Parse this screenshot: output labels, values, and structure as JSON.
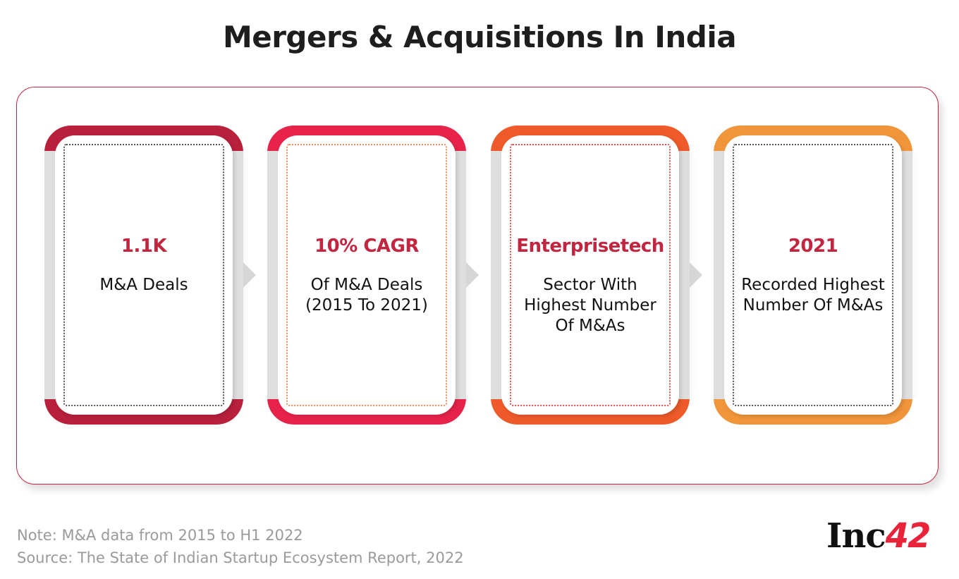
{
  "title": "Mergers & Acquisitions In India",
  "cards": [
    {
      "value": "1.1K",
      "description": "M&A Deals",
      "top_color": "#b8203c",
      "bottom_color": "#b8203c",
      "dot_color": "#555555"
    },
    {
      "value": "10% CAGR",
      "description": "Of M&A Deals (2015 To 2021)",
      "top_color": "#e8234a",
      "bottom_color": "#e8234a",
      "dot_color": "#f08a5a"
    },
    {
      "value": "Enterprisetech",
      "description": "Sector With Highest Number Of M&As",
      "top_color": "#ee5a2a",
      "bottom_color": "#ee5a2a",
      "dot_color": "#e04a4a"
    },
    {
      "value": "2021",
      "description": "Recorded Highest Number Of M&As",
      "top_color": "#f0953a",
      "bottom_color": "#f0953a",
      "dot_color": "#555555"
    }
  ],
  "footnote": {
    "note": "Note: M&A data from 2015 to H1 2022",
    "source": "Source: The State of Indian Startup Ecosystem Report, 2022"
  },
  "logo": {
    "prefix": "Inc",
    "suffix": "42"
  },
  "colors": {
    "accent": "#c2253f"
  }
}
